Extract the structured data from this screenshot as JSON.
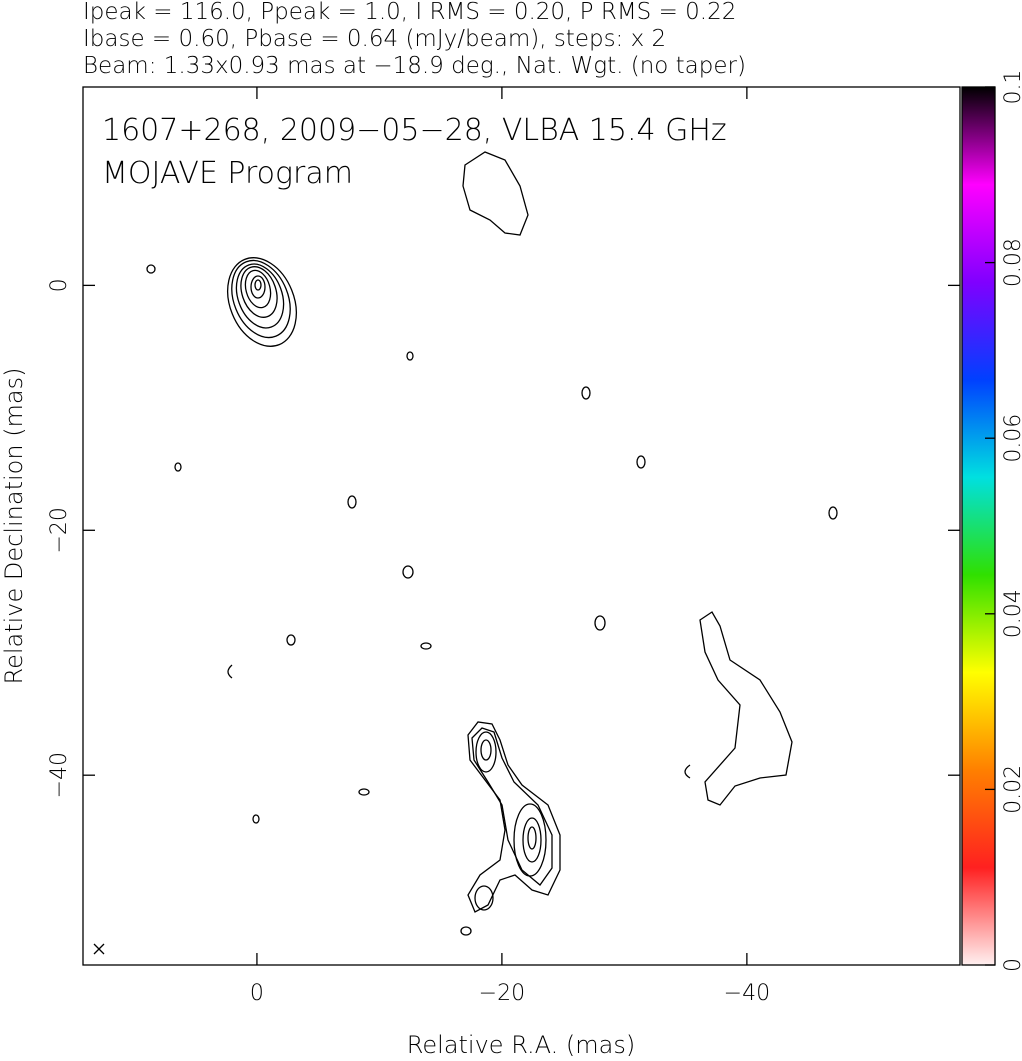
{
  "chart_data": {
    "type": "contour",
    "header": [
      "Ipeak = 116.0, Ppeak = 1.0, I RMS = 0.20, P RMS = 0.22",
      "Ibase = 0.60, Pbase = 0.64 (mJy/beam), steps: x 2",
      "Beam: 1.33x0.93 mas at −18.9 deg., Nat. Wgt. (no taper)"
    ],
    "annotations": [
      "1607+268, 2009−05−28, VLBA 15.4 GHz",
      "MOJAVE Program"
    ],
    "x_label": "Relative R.A. (mas)",
    "y_label": "Relative Declination (mas)",
    "xlim": [
      14.2,
      -57.4
    ],
    "xticks": [
      0,
      {
        "value": -20,
        "label": "−20"
      },
      {
        "value": -40,
        "label": "−40"
      }
    ],
    "ylim": [
      -55.5,
      16.2
    ],
    "yticks": [
      0,
      {
        "value": -20,
        "label": "−20"
      },
      {
        "value": -40,
        "label": "−40"
      }
    ],
    "colorbar": {
      "lim": [
        0,
        0.1
      ],
      "ticks": [
        0,
        0.02,
        0.04,
        0.06,
        0.08,
        0.1
      ],
      "colors": [
        "#fff0f0",
        "#ff2020",
        "#ff8000",
        "#ffff00",
        "#30e000",
        "#00e0e0",
        "#0040ff",
        "#8000ff",
        "#ff00ff",
        "#000000"
      ]
    }
  }
}
